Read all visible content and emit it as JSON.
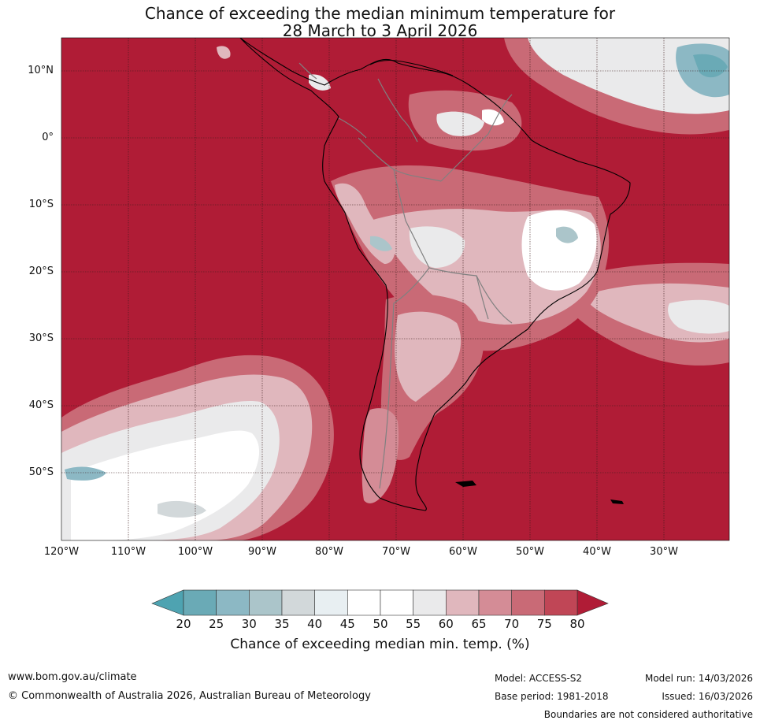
{
  "title": {
    "line1": "Chance of exceeding the median minimum temperature for",
    "line2": "28 March to 3 April 2026"
  },
  "map": {
    "background_color": "#b01c36",
    "grid_color": "#3a1a1a",
    "coast_color": "#000000",
    "border_color": "#808080",
    "lat_labels": [
      "10°N",
      "0°",
      "10°S",
      "20°S",
      "30°S",
      "40°S",
      "50°S"
    ],
    "lon_labels": [
      "120°W",
      "110°W",
      "100°W",
      "90°W",
      "80°W",
      "70°W",
      "60°W",
      "50°W",
      "40°W",
      "30°W"
    ]
  },
  "colorbar": {
    "title": "Chance of exceeding median min. temp. (%)",
    "labels": [
      "20",
      "25",
      "30",
      "35",
      "40",
      "45",
      "50",
      "55",
      "60",
      "65",
      "70",
      "75",
      "80"
    ],
    "colors": [
      "#6aaab6",
      "#8cb8c4",
      "#abc5ca",
      "#d2d8da",
      "#e8eff2",
      "#ffffff",
      "#ffffff",
      "#eaeaeb",
      "#e0b7bd",
      "#d48c96",
      "#c96a76",
      "#c04656"
    ],
    "low_color": "#4ea3b1",
    "high_color": "#b01c36"
  },
  "footer": {
    "url": "www.bom.gov.au/climate",
    "copyright": "© Commonwealth of Australia 2026, Australian Bureau of Meteorology",
    "model": "Model: ACCESS-S2",
    "base_period": "Base period: 1981-2018",
    "model_run": "Model run: 14/03/2026",
    "issued": "Issued: 16/03/2026",
    "disclaimer": "Boundaries are not considered authoritative"
  }
}
